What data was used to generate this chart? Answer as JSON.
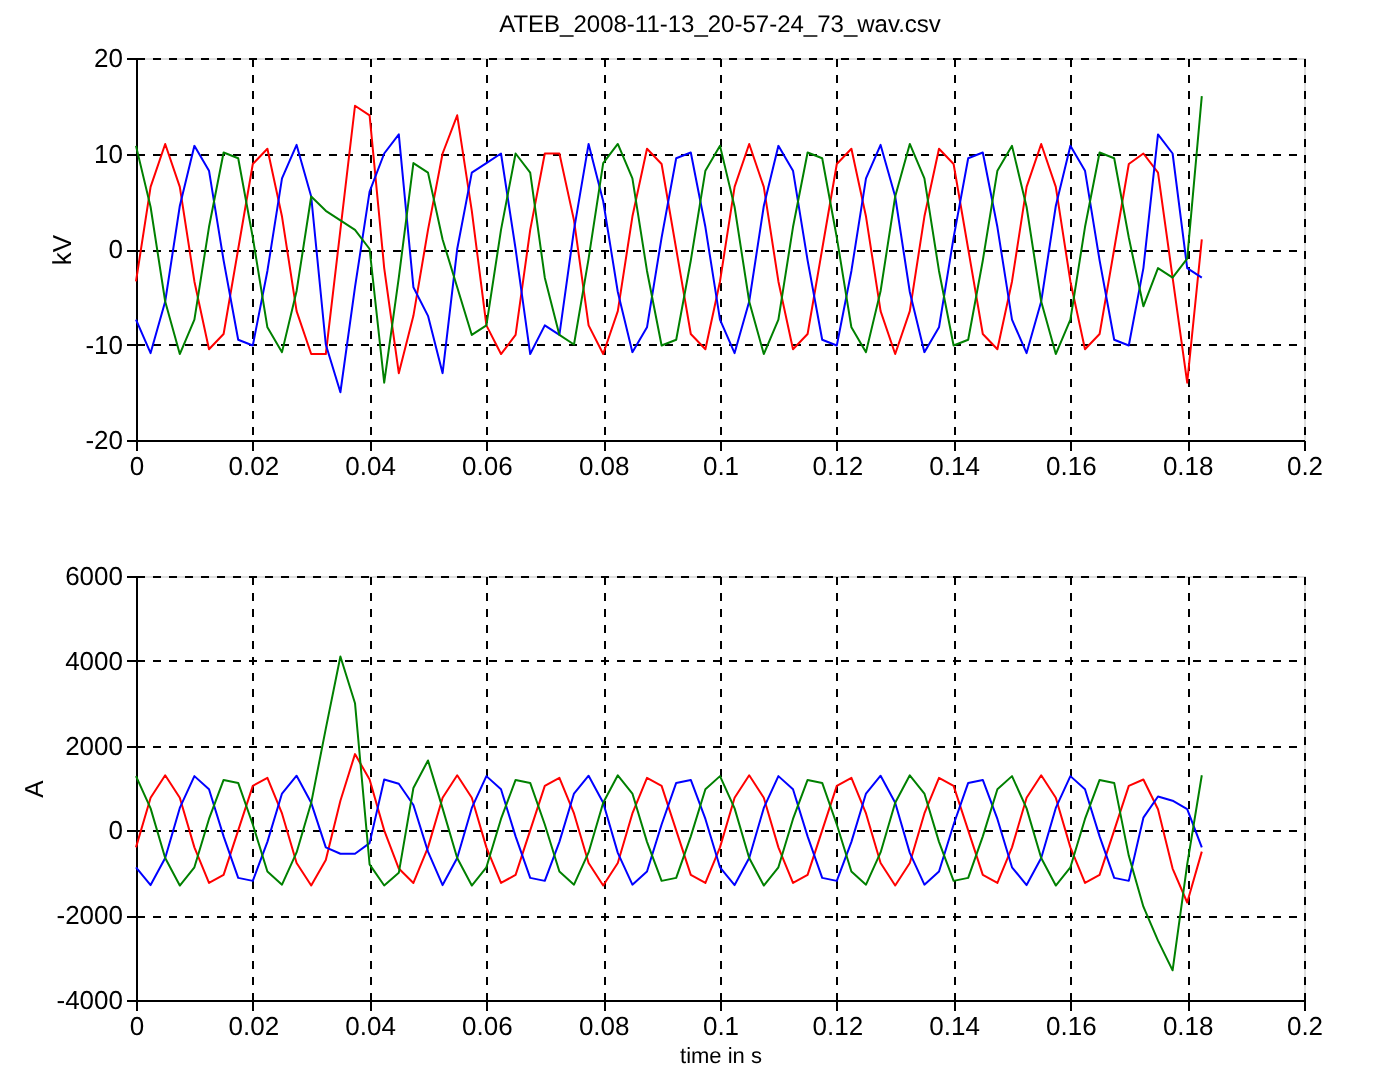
{
  "chart_data": [
    {
      "type": "line",
      "title": "ATEB_2008-11-13_20-57-24_73_wav.csv",
      "ylabel": "kV",
      "xlim": [
        0,
        0.2
      ],
      "xticks": [
        0,
        0.02,
        0.04,
        0.06,
        0.08,
        0.1,
        0.12,
        0.14,
        0.16,
        0.18,
        0.2
      ],
      "ylim": [
        -20,
        20
      ],
      "yticks": [
        -20,
        -10,
        0,
        10,
        20
      ],
      "grid": true,
      "x": [
        0,
        0.0025,
        0.005,
        0.0075,
        0.01,
        0.0125,
        0.015,
        0.0175,
        0.02,
        0.0225,
        0.025,
        0.0275,
        0.03,
        0.0325,
        0.035,
        0.0375,
        0.04,
        0.0425,
        0.045,
        0.0475,
        0.05,
        0.0525,
        0.055,
        0.0575,
        0.06,
        0.0625,
        0.065,
        0.0675,
        0.07,
        0.0725,
        0.075,
        0.0775,
        0.08,
        0.0825,
        0.085,
        0.0875,
        0.09,
        0.0925,
        0.095,
        0.0975,
        0.1,
        0.1025,
        0.105,
        0.1075,
        0.11,
        0.1125,
        0.115,
        0.1175,
        0.12,
        0.1225,
        0.125,
        0.1275,
        0.13,
        0.1325,
        0.135,
        0.1375,
        0.14,
        0.1425,
        0.145,
        0.1475,
        0.15,
        0.1525,
        0.155,
        0.1575,
        0.16,
        0.1625,
        0.165,
        0.1675,
        0.17,
        0.1725,
        0.175,
        0.1775,
        0.18,
        0.1825
      ],
      "series": [
        {
          "color": "#ff0000",
          "values": [
            -3.4,
            6.5,
            11,
            6.5,
            -3.4,
            -10.5,
            -8.9,
            0,
            8.9,
            10.5,
            3.4,
            -6.5,
            -11,
            -11,
            2,
            15,
            14,
            -2,
            -13,
            -7,
            2,
            10,
            14,
            4,
            -8,
            -11,
            -9,
            2,
            10,
            10,
            3,
            -8,
            -11,
            -6.5,
            3.4,
            10.5,
            8.9,
            0,
            -8.9,
            -10.5,
            -3.4,
            6.5,
            11,
            6.5,
            -3.4,
            -10.5,
            -8.9,
            0,
            8.9,
            10.5,
            3.4,
            -6.5,
            -11,
            -6.5,
            3.4,
            10.5,
            8.9,
            0,
            -8.9,
            -10.5,
            -3.4,
            6.5,
            11,
            6.5,
            -3.4,
            -10.5,
            -8.9,
            0,
            8.9,
            10,
            8,
            -3,
            -14,
            1
          ]
        },
        {
          "color": "#0000ff",
          "values": [
            -7.4,
            -10.9,
            -5.5,
            4.5,
            10.8,
            8.2,
            -1.2,
            -9.5,
            -10.1,
            -2.3,
            7.4,
            10.9,
            5.5,
            -10,
            -15,
            -4,
            6,
            10,
            12,
            -4,
            -7,
            -13,
            0,
            8,
            9,
            10,
            0,
            -11,
            -8,
            -9,
            2,
            11,
            5,
            -4.5,
            -10.8,
            -8.2,
            1.2,
            9.5,
            10.1,
            2.3,
            -7.4,
            -10.9,
            -5.5,
            4.5,
            10.8,
            8.2,
            -1.2,
            -9.5,
            -10.1,
            -2.3,
            7.4,
            10.9,
            5.5,
            -4.5,
            -10.8,
            -8.2,
            1.2,
            9.5,
            10.1,
            2.3,
            -7.4,
            -10.9,
            -5.5,
            4.5,
            10.8,
            8.2,
            -1.2,
            -9.5,
            -10.1,
            -2,
            12,
            10,
            -2,
            -3
          ]
        },
        {
          "color": "#008000",
          "values": [
            10.8,
            4.4,
            -5.5,
            -11,
            -7.4,
            2.3,
            10.1,
            9.5,
            1.2,
            -8.2,
            -10.8,
            -4.4,
            5.5,
            4,
            3,
            2,
            0,
            -14,
            -3,
            9,
            8,
            1,
            -4,
            -9,
            -8,
            2,
            10,
            8,
            -3,
            -9,
            -10,
            -1,
            9,
            11,
            7.4,
            -2.3,
            -10.1,
            -9.5,
            -1.2,
            8.2,
            10.8,
            4.4,
            -5.5,
            -11,
            -7.4,
            2.3,
            10.1,
            9.5,
            1.2,
            -8.2,
            -10.8,
            -4.4,
            5.5,
            11,
            7.4,
            -2.3,
            -10.1,
            -9.5,
            -1.2,
            8.2,
            10.8,
            4.4,
            -5.5,
            -11,
            -7.4,
            2.3,
            10.1,
            9.5,
            1.2,
            -6,
            -2,
            -3,
            -1,
            16
          ]
        }
      ]
    },
    {
      "type": "line",
      "xlabel": "time in s",
      "ylabel": "A",
      "xlim": [
        0,
        0.2
      ],
      "xticks": [
        0,
        0.02,
        0.04,
        0.06,
        0.08,
        0.1,
        0.12,
        0.14,
        0.16,
        0.18,
        0.2
      ],
      "ylim": [
        -4000,
        6000
      ],
      "yticks": [
        -4000,
        -2000,
        0,
        2000,
        4000,
        6000
      ],
      "grid": true,
      "x": [
        0,
        0.0025,
        0.005,
        0.0075,
        0.01,
        0.0125,
        0.015,
        0.0175,
        0.02,
        0.0225,
        0.025,
        0.0275,
        0.03,
        0.0325,
        0.035,
        0.0375,
        0.04,
        0.0425,
        0.045,
        0.0475,
        0.05,
        0.0525,
        0.055,
        0.0575,
        0.06,
        0.0625,
        0.065,
        0.0675,
        0.07,
        0.0725,
        0.075,
        0.0775,
        0.08,
        0.0825,
        0.085,
        0.0875,
        0.09,
        0.0925,
        0.095,
        0.0975,
        0.1,
        0.1025,
        0.105,
        0.1075,
        0.11,
        0.1125,
        0.115,
        0.1175,
        0.12,
        0.1225,
        0.125,
        0.1275,
        0.13,
        0.1325,
        0.135,
        0.1375,
        0.14,
        0.1425,
        0.145,
        0.1475,
        0.15,
        0.1525,
        0.155,
        0.1575,
        0.16,
        0.1625,
        0.165,
        0.1675,
        0.17,
        0.1725,
        0.175,
        0.1775,
        0.18,
        0.1825
      ],
      "series": [
        {
          "color": "#ff0000",
          "values": [
            -400,
            770,
            1300,
            770,
            -400,
            -1240,
            -1050,
            0,
            1050,
            1240,
            400,
            -770,
            -1300,
            -700,
            700,
            1800,
            1200,
            0,
            -900,
            -1240,
            -400,
            770,
            1300,
            770,
            -400,
            -1240,
            -1050,
            0,
            1050,
            1240,
            400,
            -770,
            -1300,
            -770,
            400,
            1240,
            1050,
            0,
            -1050,
            -1240,
            -400,
            770,
            1300,
            770,
            -400,
            -1240,
            -1050,
            0,
            1050,
            1240,
            400,
            -770,
            -1300,
            -770,
            400,
            1240,
            1050,
            0,
            -1050,
            -1240,
            -400,
            770,
            1300,
            770,
            -400,
            -1240,
            -1050,
            0,
            1050,
            1200,
            500,
            -900,
            -1700,
            -500
          ]
        },
        {
          "color": "#0000ff",
          "values": [
            -870,
            -1290,
            -650,
            530,
            1280,
            970,
            -140,
            -1120,
            -1190,
            -270,
            870,
            1290,
            650,
            -400,
            -550,
            -550,
            -300,
            1200,
            1100,
            600,
            -500,
            -1290,
            -650,
            530,
            1280,
            970,
            -140,
            -1120,
            -1190,
            -270,
            870,
            1290,
            650,
            -530,
            -1280,
            -970,
            140,
            1120,
            1190,
            270,
            -870,
            -1290,
            -650,
            530,
            1280,
            970,
            -140,
            -1120,
            -1190,
            -270,
            870,
            1290,
            650,
            -530,
            -1280,
            -970,
            140,
            1120,
            1190,
            270,
            -870,
            -1290,
            -650,
            530,
            1280,
            970,
            -140,
            -1120,
            -1190,
            300,
            800,
            700,
            500,
            -400
          ]
        },
        {
          "color": "#008000",
          "values": [
            1280,
            520,
            -650,
            -1300,
            -870,
            270,
            1190,
            1120,
            140,
            -970,
            -1280,
            -520,
            650,
            2400,
            4100,
            3000,
            -800,
            -1300,
            -1000,
            1000,
            1650,
            520,
            -650,
            -1300,
            -870,
            270,
            1190,
            1120,
            140,
            -970,
            -1280,
            -520,
            650,
            1300,
            870,
            -270,
            -1190,
            -1120,
            -140,
            970,
            1280,
            520,
            -650,
            -1300,
            -870,
            270,
            1190,
            1120,
            140,
            -970,
            -1280,
            -520,
            650,
            1300,
            870,
            -270,
            -1190,
            -1120,
            -140,
            970,
            1280,
            520,
            -650,
            -1300,
            -870,
            270,
            1190,
            1120,
            -600,
            -1800,
            -2600,
            -3300,
            -800,
            1300
          ]
        }
      ]
    }
  ]
}
